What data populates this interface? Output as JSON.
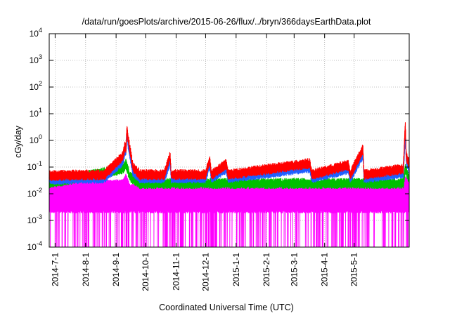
{
  "chart_data": {
    "type": "line",
    "title": "/data/run/goesPlots/archive/2015-06-26/flux/../bryn/366daysEarthData.plot",
    "xlabel": "Coordinated Universal Time (UTC)",
    "ylabel": "cGy/day",
    "y_scale": "log",
    "ylim": [
      0.0001,
      10000
    ],
    "xlim": [
      "2014-06-25",
      "2015-06-26"
    ],
    "grid": true,
    "y_ticks": [
      {
        "base": "10",
        "exp": "-4",
        "value": 0.0001
      },
      {
        "base": "10",
        "exp": "-3",
        "value": 0.001
      },
      {
        "base": "10",
        "exp": "-2",
        "value": 0.01
      },
      {
        "base": "10",
        "exp": "-1",
        "value": 0.1
      },
      {
        "base": "10",
        "exp": "0",
        "value": 1
      },
      {
        "base": "10",
        "exp": "1",
        "value": 10
      },
      {
        "base": "10",
        "exp": "2",
        "value": 100
      },
      {
        "base": "10",
        "exp": "3",
        "value": 1000
      },
      {
        "base": "10",
        "exp": "4",
        "value": 10000
      }
    ],
    "x_ticks": [
      "2014-7-1",
      "2014-8-1",
      "2014-9-1",
      "2014-10-1",
      "2014-11-1",
      "2014-12-1",
      "2015-1-1",
      "2015-2-1",
      "2015-3-1",
      "2015-4-1",
      "2015-5-1"
    ],
    "series": [
      {
        "color": "#ff0000",
        "points": [
          [
            "2014-06-25",
            0.055
          ],
          [
            "2014-07-20",
            0.058
          ],
          [
            "2014-08-20",
            0.06
          ],
          [
            "2014-09-08",
            0.3
          ],
          [
            "2014-09-10",
            0.7
          ],
          [
            "2014-09-11",
            0.6
          ],
          [
            "2014-09-12",
            3.2
          ],
          [
            "2014-09-13",
            1.5
          ],
          [
            "2014-09-18",
            0.12
          ],
          [
            "2014-09-25",
            0.06
          ],
          [
            "2014-10-20",
            0.06
          ],
          [
            "2014-10-26",
            0.32
          ],
          [
            "2014-10-27",
            0.06
          ],
          [
            "2014-12-01",
            0.06
          ],
          [
            "2014-12-05",
            0.22
          ],
          [
            "2014-12-07",
            0.06
          ],
          [
            "2014-12-22",
            0.15
          ],
          [
            "2014-12-24",
            0.06
          ],
          [
            "2015-03-17",
            0.16
          ],
          [
            "2015-03-19",
            0.06
          ],
          [
            "2015-04-25",
            0.14
          ],
          [
            "2015-04-27",
            0.06
          ],
          [
            "2015-05-10",
            0.55
          ],
          [
            "2015-05-11",
            0.06
          ],
          [
            "2015-06-20",
            0.1
          ],
          [
            "2015-06-22",
            4.8
          ],
          [
            "2015-06-23",
            0.3
          ],
          [
            "2015-06-26",
            0.15
          ]
        ]
      },
      {
        "color": "#1f5fff",
        "points": [
          [
            "2014-06-25",
            0.04
          ],
          [
            "2014-07-20",
            0.042
          ],
          [
            "2014-08-20",
            0.045
          ],
          [
            "2014-09-08",
            0.2
          ],
          [
            "2014-09-10",
            0.5
          ],
          [
            "2014-09-11",
            0.45
          ],
          [
            "2014-09-12",
            2.2
          ],
          [
            "2014-09-13",
            1.0
          ],
          [
            "2014-09-18",
            0.08
          ],
          [
            "2014-09-25",
            0.045
          ],
          [
            "2014-10-20",
            0.045
          ],
          [
            "2014-10-26",
            0.2
          ],
          [
            "2014-10-27",
            0.045
          ],
          [
            "2014-12-01",
            0.045
          ],
          [
            "2014-12-05",
            0.15
          ],
          [
            "2014-12-07",
            0.045
          ],
          [
            "2014-12-22",
            0.1
          ],
          [
            "2014-12-24",
            0.045
          ],
          [
            "2015-03-17",
            0.11
          ],
          [
            "2015-03-19",
            0.045
          ],
          [
            "2015-04-25",
            0.1
          ],
          [
            "2015-04-27",
            0.045
          ],
          [
            "2015-05-10",
            0.35
          ],
          [
            "2015-05-11",
            0.045
          ],
          [
            "2015-06-20",
            0.07
          ],
          [
            "2015-06-22",
            1.5
          ],
          [
            "2015-06-23",
            0.2
          ],
          [
            "2015-06-26",
            0.1
          ]
        ]
      },
      {
        "color": "#00c000",
        "points": [
          [
            "2014-06-25",
            0.028
          ],
          [
            "2014-09-08",
            0.1
          ],
          [
            "2014-09-11",
            0.15
          ],
          [
            "2014-09-15",
            0.05
          ],
          [
            "2014-09-25",
            0.028
          ],
          [
            "2015-06-20",
            0.028
          ],
          [
            "2015-06-22",
            0.1
          ],
          [
            "2015-06-26",
            0.04
          ]
        ]
      },
      {
        "color": "#ff00ff",
        "points": [
          [
            "2014-06-25",
            0.022
          ],
          [
            "2014-09-08",
            0.03
          ],
          [
            "2014-09-11",
            0.05
          ],
          [
            "2014-09-15",
            0.02
          ],
          [
            "2014-09-25",
            0.022
          ],
          [
            "2015-06-20",
            0.022
          ],
          [
            "2015-06-22",
            0.04
          ],
          [
            "2015-06-26",
            0.025
          ]
        ]
      }
    ]
  }
}
